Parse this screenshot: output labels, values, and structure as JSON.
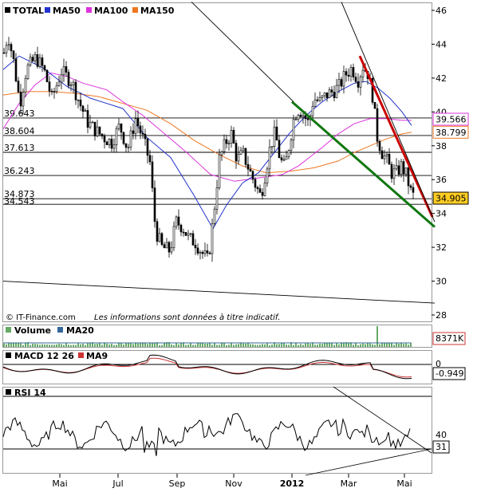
{
  "chart_data": [
    {
      "type": "line",
      "title": "TOTAL",
      "legend": [
        {
          "name": "TOTAL",
          "color": "#000000"
        },
        {
          "name": "MA50",
          "color": "#2233cc"
        },
        {
          "name": "MA100",
          "color": "#dd33dd"
        },
        {
          "name": "MA150",
          "color": "#ee7722"
        }
      ],
      "ylim": [
        28,
        46
      ],
      "y_ticks": [
        "28",
        "30",
        "32",
        "34",
        "36",
        "38",
        "40",
        "42",
        "44",
        "46"
      ],
      "x_ticks": [
        "Mai",
        "Jul",
        "Sep",
        "Nov",
        "2012",
        "Mar",
        "Mai"
      ],
      "level_lines": [
        {
          "label": "39.643",
          "value": 39.643
        },
        {
          "label": "38.604",
          "value": 38.604
        },
        {
          "label": "37.613",
          "value": 37.613
        },
        {
          "label": "36.243",
          "value": 36.243
        },
        {
          "label": "34.873",
          "value": 34.873
        },
        {
          "label": "34.543",
          "value": 34.543
        }
      ],
      "value_tags": [
        {
          "label": "39.566",
          "value": 39.566,
          "color": "#dd33dd"
        },
        {
          "label": "38.799",
          "value": 38.799,
          "color": "#ee7722"
        },
        {
          "label": "34.905",
          "value": 34.905,
          "color": "#000000"
        }
      ],
      "price_path": [
        [
          0,
          43.5
        ],
        [
          5,
          44.6
        ],
        [
          12,
          43
        ],
        [
          20,
          40.5
        ],
        [
          28,
          42.5
        ],
        [
          40,
          43.2
        ],
        [
          50,
          42.5
        ],
        [
          60,
          40.8
        ],
        [
          72,
          42.4
        ],
        [
          85,
          41.8
        ],
        [
          95,
          40.5
        ],
        [
          105,
          39.4
        ],
        [
          115,
          38.9
        ],
        [
          125,
          38.5
        ],
        [
          135,
          38.2
        ],
        [
          145,
          39.2
        ],
        [
          155,
          37.8
        ],
        [
          165,
          39.6
        ],
        [
          175,
          38.3
        ],
        [
          183,
          37
        ],
        [
          190,
          33
        ],
        [
          198,
          32
        ],
        [
          208,
          31.8
        ],
        [
          216,
          33.5
        ],
        [
          224,
          33.2
        ],
        [
          232,
          32.5
        ],
        [
          240,
          32.3
        ],
        [
          248,
          31.7
        ],
        [
          256,
          31.2
        ],
        [
          263,
          34
        ],
        [
          270,
          37.2
        ],
        [
          278,
          38.2
        ],
        [
          285,
          38.7
        ],
        [
          292,
          37.2
        ],
        [
          300,
          37.5
        ],
        [
          308,
          36.5
        ],
        [
          316,
          35.6
        ],
        [
          322,
          35
        ],
        [
          328,
          36.5
        ],
        [
          334,
          38
        ],
        [
          340,
          38.8
        ],
        [
          346,
          37.2
        ],
        [
          352,
          36.7
        ],
        [
          358,
          38.2
        ],
        [
          364,
          39.8
        ],
        [
          370,
          40.2
        ],
        [
          376,
          39.8
        ],
        [
          382,
          39.3
        ],
        [
          388,
          40.8
        ],
        [
          396,
          40.6
        ],
        [
          404,
          41
        ],
        [
          412,
          41.2
        ],
        [
          420,
          41.5
        ],
        [
          428,
          42.2
        ],
        [
          436,
          42.6
        ],
        [
          444,
          41.9
        ],
        [
          450,
          42.7
        ],
        [
          456,
          42.3
        ],
        [
          462,
          41
        ],
        [
          468,
          38.5
        ],
        [
          474,
          37.6
        ],
        [
          480,
          37.1
        ],
        [
          486,
          36.4
        ],
        [
          492,
          36.4
        ],
        [
          498,
          36.8
        ],
        [
          504,
          36.3
        ],
        [
          510,
          35.3
        ],
        [
          515,
          34.9
        ]
      ],
      "ma50": [
        [
          0,
          42.5
        ],
        [
          20,
          43.3
        ],
        [
          50,
          42.6
        ],
        [
          80,
          41.5
        ],
        [
          110,
          40.8
        ],
        [
          150,
          40.2
        ],
        [
          180,
          38.5
        ],
        [
          210,
          37.3
        ],
        [
          240,
          35
        ],
        [
          263,
          33.1
        ],
        [
          280,
          34.5
        ],
        [
          300,
          35.8
        ],
        [
          320,
          36.4
        ],
        [
          340,
          37.6
        ],
        [
          360,
          38.8
        ],
        [
          380,
          39.8
        ],
        [
          400,
          40.6
        ],
        [
          420,
          41.2
        ],
        [
          440,
          41.7
        ],
        [
          455,
          41.8
        ],
        [
          470,
          41.4
        ],
        [
          485,
          40.8
        ],
        [
          500,
          40
        ],
        [
          512,
          39.2
        ]
      ],
      "ma100": [
        [
          0,
          39
        ],
        [
          20,
          40.5
        ],
        [
          40,
          41.6
        ],
        [
          60,
          42.3
        ],
        [
          80,
          42.1
        ],
        [
          100,
          41.7
        ],
        [
          130,
          41.3
        ],
        [
          150,
          40.6
        ],
        [
          175,
          39.8
        ],
        [
          200,
          38.8
        ],
        [
          230,
          37.6
        ],
        [
          260,
          36.3
        ],
        [
          290,
          35.9
        ],
        [
          320,
          36.1
        ],
        [
          350,
          36.3
        ],
        [
          370,
          36.8
        ],
        [
          400,
          37.9
        ],
        [
          420,
          38.7
        ],
        [
          440,
          39.3
        ],
        [
          460,
          39.6
        ],
        [
          480,
          39.6
        ],
        [
          500,
          39.5
        ],
        [
          512,
          39.5
        ]
      ],
      "ma150": [
        [
          0,
          41
        ],
        [
          30,
          41.2
        ],
        [
          60,
          41.2
        ],
        [
          90,
          41.1
        ],
        [
          120,
          40.9
        ],
        [
          150,
          40.5
        ],
        [
          180,
          40.1
        ],
        [
          210,
          39.3
        ],
        [
          240,
          38.3
        ],
        [
          270,
          37.5
        ],
        [
          300,
          36.8
        ],
        [
          330,
          36.4
        ],
        [
          360,
          36.5
        ],
        [
          390,
          36.7
        ],
        [
          420,
          37.1
        ],
        [
          440,
          37.6
        ],
        [
          460,
          38
        ],
        [
          480,
          38.4
        ],
        [
          500,
          38.7
        ],
        [
          512,
          38.8
        ]
      ],
      "trendlines": [
        {
          "color": "#cc0000",
          "from": [
            447,
            43.3
          ],
          "to": [
            538,
            33.8
          ]
        },
        {
          "color": "#117711",
          "from": [
            362,
            40.6
          ],
          "to": [
            541,
            33.2
          ]
        },
        {
          "color": "#000000",
          "from": [
            236,
            46.5
          ],
          "to": [
            364,
            40.6
          ]
        },
        {
          "color": "#000000",
          "from": [
            424,
            46.5
          ],
          "to": [
            541,
            33.5
          ]
        },
        {
          "color": "#000000",
          "from": [
            0,
            30.0
          ],
          "to": [
            541,
            28.7
          ]
        }
      ]
    },
    {
      "type": "bar",
      "title": "Volume",
      "legend": [
        {
          "name": "Volume",
          "color": "#66aa66"
        },
        {
          "name": "MA20",
          "color": "#336699"
        }
      ],
      "value_tag": "8371K",
      "spike_x": 468
    },
    {
      "type": "line",
      "title": "MACD 12 26",
      "legend": [
        {
          "name": "MACD 12 26",
          "color": "#000000"
        },
        {
          "name": "MA9",
          "color": "#cc3333"
        }
      ],
      "y_ticks": [
        "0"
      ],
      "value_tag": "-0.949"
    },
    {
      "type": "line",
      "title": "RSI 14",
      "legend": [
        {
          "name": "RSI 14",
          "color": "#000000"
        }
      ],
      "ylim": [
        0,
        100
      ],
      "y_ticks": [
        "40"
      ],
      "levels": [
        30,
        70
      ],
      "value_tag": "31"
    }
  ],
  "footer": {
    "copyright": "© IT-Finance.com",
    "disclaimer": "Les informations sont données à titre indicatif."
  }
}
